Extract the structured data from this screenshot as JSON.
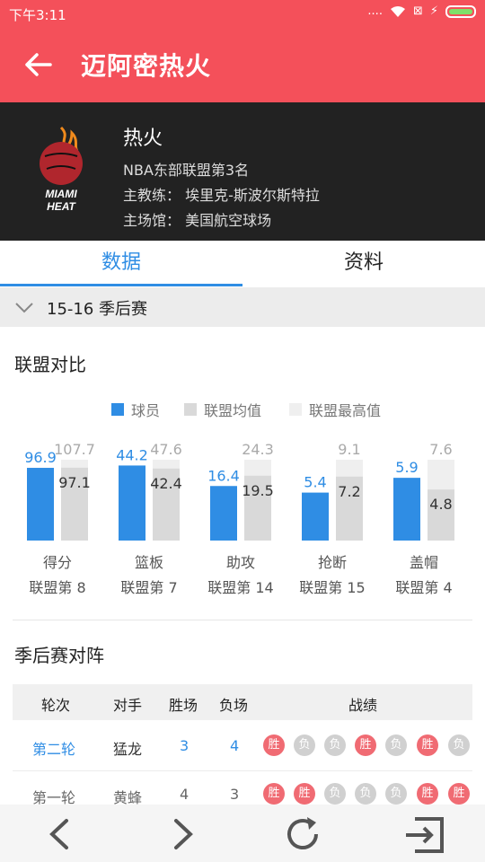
{
  "status_bar": {
    "time": "下午3:11",
    "signal": "....",
    "x_icon": "⊠"
  },
  "app_bar": {
    "title": "迈阿密热火"
  },
  "team": {
    "logo_text_1": "MIAMI",
    "logo_text_2": "HEAT",
    "name": "热火",
    "rank_line": "NBA东部联盟第3名",
    "coach_label": "主教练：",
    "coach": "埃里克-斯波尔斯特拉",
    "arena_label": "主场馆：",
    "arena": "美国航空球场"
  },
  "tabs": {
    "data": "数据",
    "info": "资料"
  },
  "season": {
    "label": "15-16 季后赛"
  },
  "league_compare": {
    "title": "联盟对比",
    "legend": [
      "球员",
      "联盟均值",
      "联盟最高值"
    ]
  },
  "colors": {
    "player": "#2f8de4",
    "avg": "#d9d9d9",
    "max": "#efefef",
    "win": "#f06b73",
    "loss": "#d0d0d0"
  },
  "chart_data": {
    "type": "bar",
    "categories": [
      "得分",
      "篮板",
      "助攻",
      "抢断",
      "盖帽"
    ],
    "series": [
      {
        "name": "球员",
        "values": [
          96.9,
          44.2,
          16.4,
          5.4,
          5.9
        ]
      },
      {
        "name": "联盟均值",
        "values": [
          97.1,
          42.4,
          19.5,
          7.2,
          4.8
        ]
      },
      {
        "name": "联盟最高值",
        "values": [
          107.7,
          47.6,
          24.3,
          9.1,
          7.6
        ]
      }
    ],
    "ranks": [
      "联盟第 8",
      "联盟第 7",
      "联盟第 14",
      "联盟第 15",
      "联盟第 4"
    ],
    "legend_position": "top",
    "grid": false
  },
  "playoff": {
    "title": "季后赛对阵",
    "headers": {
      "round": "轮次",
      "opponent": "对手",
      "wins": "胜场",
      "losses": "负场",
      "record": "战绩"
    },
    "rows": [
      {
        "round": "第二轮",
        "opponent": "猛龙",
        "wins": "3",
        "losses": "4",
        "results": [
          "胜",
          "负",
          "负",
          "胜",
          "负",
          "胜",
          "负"
        ]
      },
      {
        "round": "第一轮",
        "opponent": "黄蜂",
        "wins": "4",
        "losses": "3",
        "results": [
          "胜",
          "胜",
          "负",
          "负",
          "负",
          "胜",
          "胜"
        ]
      }
    ]
  },
  "bottom_nav": [
    "back-icon",
    "forward-icon",
    "refresh-icon",
    "exit-icon"
  ]
}
